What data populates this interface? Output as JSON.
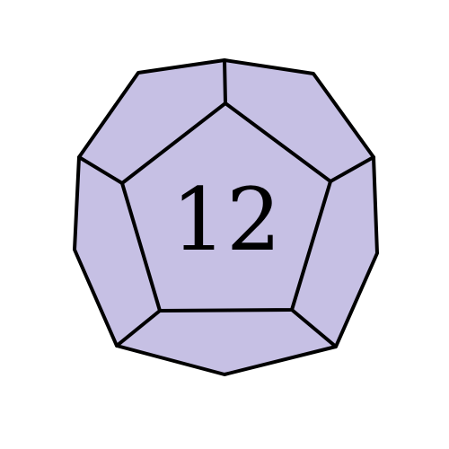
{
  "die": {
    "face_value": "12",
    "fill_color": "#c6c0e4",
    "stroke_color": "#000000",
    "text_color": "#000000"
  }
}
